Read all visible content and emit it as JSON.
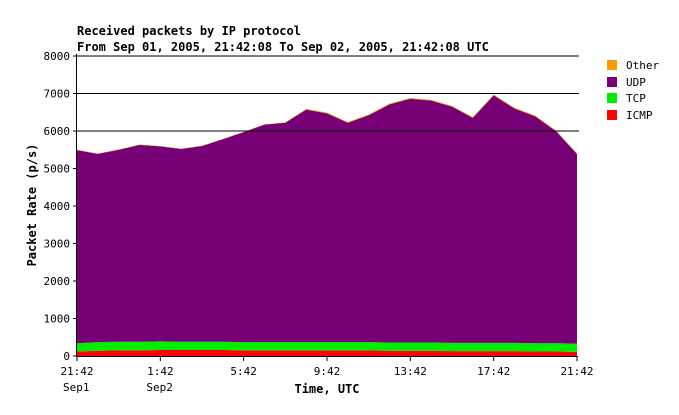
{
  "chart_data": {
    "type": "area",
    "stacked": true,
    "title": "Received packets by IP protocol",
    "subtitle": "From Sep 01, 2005, 21:42:08 To Sep 02, 2005, 21:42:08 UTC",
    "xlabel": "Time, UTC",
    "ylabel": "Packet Rate (p/s)",
    "ylim": [
      0,
      8000
    ],
    "yticks": [
      0,
      1000,
      2000,
      3000,
      4000,
      5000,
      6000,
      7000,
      8000
    ],
    "xlim": [
      0,
      24
    ],
    "xticks": [
      {
        "x": 0,
        "label": "21:42",
        "sub": "Sep1"
      },
      {
        "x": 4,
        "label": "1:42",
        "sub": "Sep2"
      },
      {
        "x": 8,
        "label": "5:42",
        "sub": ""
      },
      {
        "x": 12,
        "label": "9:42",
        "sub": ""
      },
      {
        "x": 16,
        "label": "13:42",
        "sub": ""
      },
      {
        "x": 20,
        "label": "17:42",
        "sub": ""
      },
      {
        "x": 24,
        "label": "21:42",
        "sub": ""
      }
    ],
    "grid": "horizontal lines at 6000, 7000, 8000",
    "legend_position": "right",
    "x": [
      0,
      1,
      2,
      3,
      4,
      5,
      6,
      7,
      8,
      9,
      10,
      11,
      12,
      13,
      14,
      15,
      16,
      17,
      18,
      19,
      20,
      21,
      22,
      23,
      24
    ],
    "series": [
      {
        "name": "ICMP",
        "color": "#ff0000",
        "values": [
          120,
          140,
          150,
          150,
          160,
          160,
          160,
          160,
          150,
          150,
          150,
          150,
          150,
          150,
          150,
          140,
          140,
          140,
          130,
          130,
          130,
          130,
          120,
          120,
          110
        ]
      },
      {
        "name": "TCP",
        "color": "#00ee00",
        "values": [
          220,
          230,
          230,
          230,
          230,
          220,
          220,
          220,
          220,
          220,
          220,
          220,
          220,
          220,
          220,
          220,
          220,
          220,
          220,
          220,
          220,
          220,
          220,
          220,
          220
        ]
      },
      {
        "name": "UDP",
        "color": "#770077",
        "values": [
          5150,
          5020,
          5120,
          5250,
          5200,
          5140,
          5220,
          5400,
          5600,
          5800,
          5850,
          6200,
          6100,
          5850,
          6050,
          6350,
          6500,
          6450,
          6300,
          6000,
          6600,
          6250,
          6050,
          5650,
          5060
        ]
      },
      {
        "name": "Other",
        "color": "#ff9900",
        "values": [
          10,
          10,
          10,
          10,
          10,
          10,
          10,
          10,
          10,
          10,
          10,
          20,
          20,
          20,
          20,
          20,
          20,
          20,
          20,
          20,
          20,
          20,
          20,
          20,
          10
        ]
      }
    ]
  }
}
